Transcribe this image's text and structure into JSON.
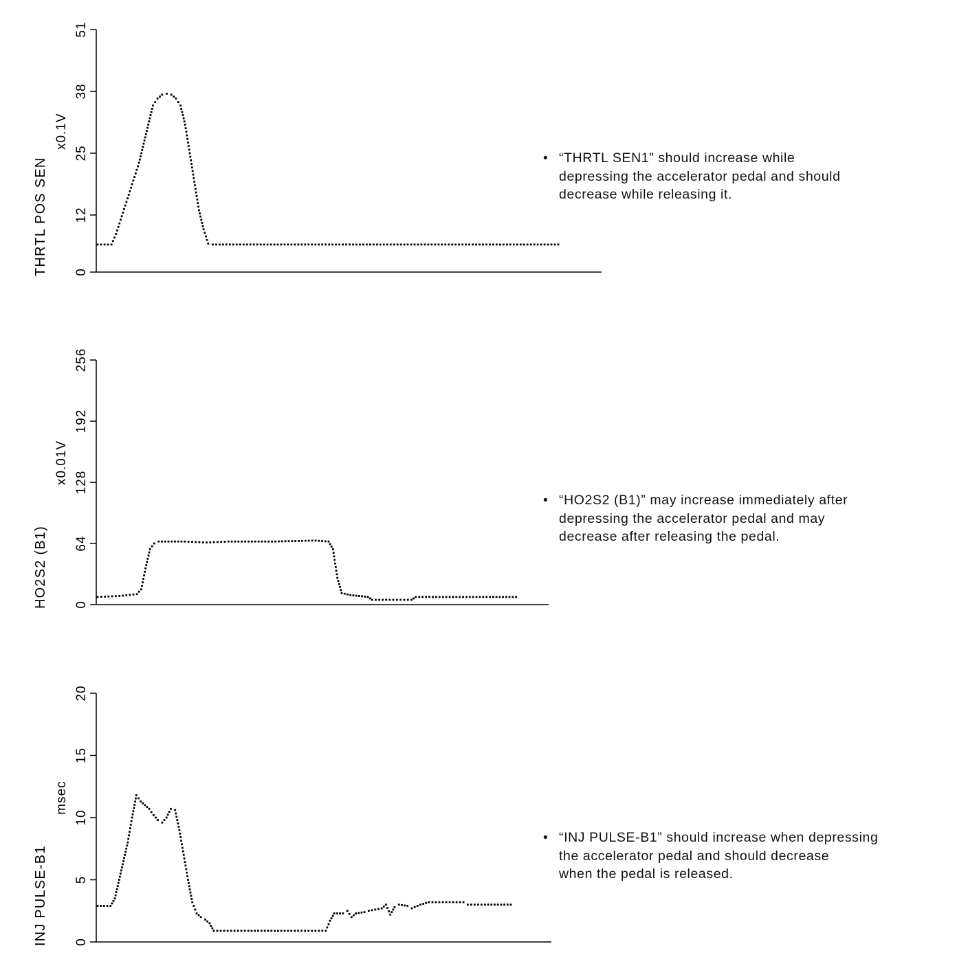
{
  "chart_data": [
    {
      "type": "scatter",
      "title": "",
      "ylabel": "THRTL POS SEN",
      "unit": "x0.1V",
      "yticks": [
        0,
        12,
        25,
        38,
        51
      ],
      "ylim": [
        0,
        51
      ],
      "xlim": [
        0,
        100
      ],
      "series_points": [
        [
          0,
          5.8
        ],
        [
          3,
          5.8
        ],
        [
          4,
          8
        ],
        [
          5,
          11
        ],
        [
          6,
          14
        ],
        [
          7,
          17
        ],
        [
          8,
          20
        ],
        [
          9,
          23
        ],
        [
          10,
          27
        ],
        [
          11,
          31
        ],
        [
          12,
          35
        ],
        [
          13,
          36.5
        ],
        [
          14,
          37.3
        ],
        [
          15,
          37.5
        ],
        [
          16,
          37.3
        ],
        [
          17,
          36.5
        ],
        [
          18,
          35
        ],
        [
          19,
          31
        ],
        [
          20,
          25
        ],
        [
          21,
          19
        ],
        [
          22,
          13
        ],
        [
          23,
          9
        ],
        [
          24,
          6
        ],
        [
          25,
          5.8
        ],
        [
          100,
          5.8
        ]
      ],
      "note": [
        "“THRTL SEN1” should increase while",
        "depressing the accelerator pedal and should",
        "decrease while releasing it."
      ]
    },
    {
      "type": "scatter",
      "title": "",
      "ylabel": "HO2S2 (B1)",
      "unit": "x0.01V",
      "yticks": [
        0,
        64,
        128,
        192,
        256
      ],
      "ylim": [
        0,
        256
      ],
      "xlim": [
        0,
        100
      ],
      "series_points": [
        [
          0,
          8
        ],
        [
          5,
          9
        ],
        [
          9,
          11
        ],
        [
          10,
          16
        ],
        [
          11,
          38
        ],
        [
          12,
          58
        ],
        [
          13,
          64
        ],
        [
          14,
          66
        ],
        [
          20,
          66
        ],
        [
          25,
          65
        ],
        [
          30,
          66
        ],
        [
          40,
          66
        ],
        [
          50,
          67
        ],
        [
          53,
          66
        ],
        [
          54,
          58
        ],
        [
          55,
          28
        ],
        [
          56,
          12
        ],
        [
          58,
          10
        ],
        [
          60,
          9
        ],
        [
          62,
          8
        ],
        [
          63,
          5
        ],
        [
          67,
          5
        ],
        [
          72,
          5
        ],
        [
          73,
          8
        ],
        [
          80,
          8
        ],
        [
          90,
          8
        ],
        [
          96,
          8
        ]
      ],
      "note": [
        "“HO2S2 (B1)” may increase immediately after",
        "depressing the accelerator pedal and may",
        "decrease after releasing the pedal."
      ]
    },
    {
      "type": "scatter",
      "title": "",
      "ylabel": "INJ PULSE-B1",
      "unit": "msec",
      "yticks": [
        0,
        5,
        10,
        15,
        20
      ],
      "ylim": [
        0,
        20
      ],
      "xlim": [
        0,
        100
      ],
      "series_points": [
        [
          0,
          2.9
        ],
        [
          3,
          2.9
        ],
        [
          4,
          3.5
        ],
        [
          5,
          5
        ],
        [
          6,
          6.5
        ],
        [
          7,
          8
        ],
        [
          8,
          10
        ],
        [
          9,
          11.8
        ],
        [
          10,
          11.3
        ],
        [
          11,
          11
        ],
        [
          12,
          10.7
        ],
        [
          13,
          10.2
        ],
        [
          14,
          9.8
        ],
        [
          15,
          9.6
        ],
        [
          16,
          10
        ],
        [
          17,
          10.7
        ],
        [
          18,
          10.6
        ],
        [
          19,
          9
        ],
        [
          20,
          7
        ],
        [
          21,
          5
        ],
        [
          22,
          3.2
        ],
        [
          23,
          2.3
        ],
        [
          24,
          2
        ],
        [
          25,
          1.8
        ],
        [
          26,
          1.5
        ],
        [
          27,
          0.9
        ],
        [
          35,
          0.9
        ],
        [
          45,
          0.9
        ],
        [
          53,
          0.9
        ],
        [
          54,
          1.7
        ],
        [
          55,
          2.3
        ],
        [
          57,
          2.3
        ],
        [
          58,
          2.5
        ],
        [
          59,
          2
        ],
        [
          60,
          2.3
        ],
        [
          62,
          2.4
        ],
        [
          63,
          2.5
        ],
        [
          66,
          2.7
        ],
        [
          67,
          3
        ],
        [
          68,
          2.2
        ],
        [
          69,
          2.8
        ],
        [
          70,
          3
        ],
        [
          72,
          2.9
        ],
        [
          73,
          2.7
        ],
        [
          75,
          3
        ],
        [
          77,
          3.2
        ],
        [
          85,
          3.2
        ],
        [
          86,
          3
        ],
        [
          90,
          3
        ],
        [
          96,
          3
        ]
      ],
      "note": [
        "“INJ PULSE-B1” should increase when depressing",
        "the accelerator pedal and should decrease",
        "when the pedal is released."
      ]
    }
  ]
}
